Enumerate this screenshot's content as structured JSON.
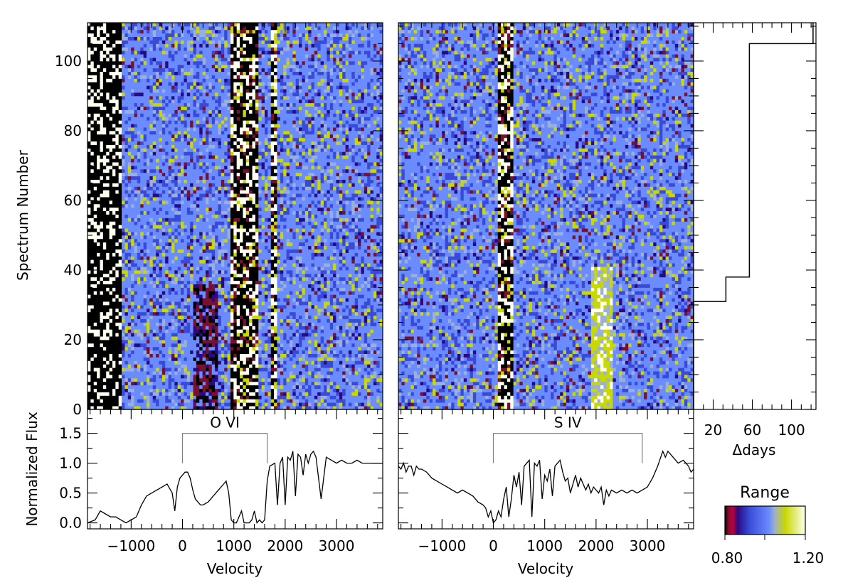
{
  "colors": {
    "colormap": [
      "#000000",
      "#7a1030",
      "#2a0a80",
      "#3a4ad8",
      "#6a8cff",
      "#9ab0d8",
      "#c8d800",
      "#fffff0"
    ],
    "axis": "#000000",
    "bracket": "#808080"
  },
  "left_panel": {
    "ylabel": "Spectrum Number",
    "yticks": [
      "0",
      "20",
      "40",
      "60",
      "80",
      "100"
    ]
  },
  "lower_left": {
    "ylabel": "Normalized Flux",
    "yticks": [
      "0.0",
      "0.5",
      "1.0",
      "1.5"
    ],
    "xticks": [
      "−1000",
      "0",
      "1000",
      "2000",
      "3000"
    ],
    "xlabel": "Velocity",
    "line_label": "O VI"
  },
  "lower_mid": {
    "xticks": [
      "−1000",
      "0",
      "1000",
      "2000",
      "3000"
    ],
    "xlabel": "Velocity",
    "line_label": "S IV"
  },
  "dt_panel": {
    "xticks": [
      "20",
      "60",
      "100"
    ],
    "xlabel": "Δdays"
  },
  "colorbar": {
    "title": "Range",
    "min_label": "0.80",
    "max_label": "1.20"
  },
  "chart_data": [
    {
      "type": "heatmap",
      "panel": "O VI dynamic spectrum",
      "x_range": [
        -1850,
        3900
      ],
      "y_range": [
        0,
        111
      ],
      "ylabel": "Spectrum Number",
      "value_range": [
        0.8,
        1.2
      ],
      "features": [
        {
          "velocity_range": [
            -1850,
            -1200
          ],
          "description": "black saturated bins, rows 0-110"
        },
        {
          "velocity_range": [
            200,
            700
          ],
          "description": "dark absorption feature, rows 0-35"
        },
        {
          "velocity_range": [
            950,
            1500
          ],
          "description": "black/white absorption band, all rows"
        },
        {
          "velocity_range": [
            1750,
            1850
          ],
          "description": "black/white absorption band, all rows"
        }
      ]
    },
    {
      "type": "heatmap",
      "panel": "S IV dynamic spectrum",
      "x_range": [
        -1850,
        3900
      ],
      "y_range": [
        0,
        111
      ],
      "value_range": [
        0.8,
        1.2
      ],
      "features": [
        {
          "velocity_range": [
            100,
            400
          ],
          "description": "dark/white absorption band, all rows"
        },
        {
          "velocity_range": [
            1900,
            2300
          ],
          "description": "yellow enhancement band, rows 0-40"
        }
      ]
    },
    {
      "type": "line",
      "panel": "O VI normalized flux",
      "xlabel": "Velocity",
      "ylabel": "Normalized Flux",
      "xlim": [
        -1850,
        3900
      ],
      "ylim": [
        -0.1,
        1.9
      ],
      "bracket": [
        0,
        1650
      ],
      "bracket_y": 1.5,
      "x": [
        -1850,
        -1700,
        -1600,
        -1500,
        -1400,
        -1300,
        -1200,
        -1100,
        -1000,
        -900,
        -800,
        -700,
        -600,
        -500,
        -400,
        -300,
        -200,
        -150,
        -100,
        -50,
        0,
        50,
        100,
        150,
        200,
        250,
        300,
        350,
        400,
        500,
        600,
        700,
        750,
        800,
        850,
        900,
        950,
        1000,
        1050,
        1100,
        1150,
        1200,
        1300,
        1350,
        1400,
        1450,
        1500,
        1550,
        1600,
        1650,
        1700,
        1800,
        1850,
        1900,
        1950,
        2000,
        2050,
        2100,
        2150,
        2200,
        2250,
        2300,
        2350,
        2400,
        2450,
        2500,
        2550,
        2600,
        2700,
        2800,
        2900,
        3000,
        3100,
        3200,
        3300,
        3400,
        3500,
        3600,
        3700,
        3800,
        3900
      ],
      "y": [
        0.0,
        0.05,
        0.2,
        0.15,
        0.1,
        0.1,
        0.05,
        0.0,
        0.05,
        0.1,
        0.3,
        0.45,
        0.5,
        0.55,
        0.6,
        0.65,
        0.5,
        0.2,
        0.6,
        0.75,
        0.8,
        0.85,
        0.85,
        0.75,
        0.55,
        0.4,
        0.35,
        0.3,
        0.3,
        0.35,
        0.45,
        0.55,
        0.6,
        0.65,
        0.7,
        0.5,
        0.05,
        0.0,
        0.0,
        0.1,
        0.2,
        0.0,
        0.0,
        0.05,
        0.2,
        0.0,
        0.05,
        0.0,
        0.05,
        0.7,
        0.95,
        1.0,
        0.3,
        1.0,
        1.1,
        0.3,
        1.1,
        1.05,
        1.2,
        0.45,
        1.15,
        1.1,
        0.8,
        1.15,
        1.0,
        1.15,
        1.2,
        1.1,
        0.4,
        1.1,
        1.05,
        1.0,
        1.05,
        1.0,
        1.0,
        1.05,
        1.0,
        1.0,
        1.0,
        1.0,
        1.0
      ]
    },
    {
      "type": "line",
      "panel": "S IV normalized flux",
      "xlabel": "Velocity",
      "xlim": [
        -1850,
        3900
      ],
      "ylim": [
        -0.1,
        1.9
      ],
      "bracket": [
        0,
        2900
      ],
      "bracket_y": 1.5,
      "x": [
        -1850,
        -1800,
        -1750,
        -1700,
        -1650,
        -1600,
        -1550,
        -1500,
        -1450,
        -1400,
        -1300,
        -1200,
        -1100,
        -1000,
        -900,
        -800,
        -700,
        -600,
        -500,
        -400,
        -300,
        -200,
        -150,
        -100,
        -50,
        0,
        50,
        100,
        150,
        200,
        250,
        300,
        350,
        400,
        450,
        500,
        550,
        600,
        650,
        700,
        750,
        800,
        850,
        900,
        950,
        1000,
        1050,
        1100,
        1150,
        1200,
        1250,
        1300,
        1350,
        1400,
        1450,
        1500,
        1550,
        1600,
        1650,
        1700,
        1750,
        1800,
        1850,
        1900,
        1950,
        2000,
        2050,
        2100,
        2150,
        2200,
        2250,
        2300,
        2400,
        2500,
        2600,
        2700,
        2800,
        2900,
        3000,
        3100,
        3200,
        3300,
        3350,
        3400,
        3500,
        3600,
        3700,
        3800,
        3850,
        3900
      ],
      "y": [
        0.95,
        0.9,
        1.0,
        0.85,
        0.95,
        0.95,
        0.8,
        0.95,
        0.9,
        0.9,
        0.85,
        0.75,
        0.7,
        0.65,
        0.6,
        0.55,
        0.5,
        0.55,
        0.5,
        0.45,
        0.35,
        0.3,
        0.25,
        0.1,
        0.2,
        0.0,
        0.05,
        0.2,
        0.1,
        0.4,
        0.6,
        0.1,
        0.4,
        0.8,
        0.6,
        0.85,
        0.3,
        0.95,
        1.0,
        1.05,
        0.1,
        1.0,
        0.95,
        1.05,
        0.4,
        0.8,
        0.7,
        0.9,
        0.45,
        0.95,
        1.0,
        1.05,
        0.85,
        0.7,
        0.75,
        0.5,
        0.65,
        0.8,
        0.6,
        0.75,
        0.65,
        0.55,
        0.65,
        0.5,
        0.6,
        0.55,
        0.5,
        0.6,
        0.3,
        0.55,
        0.45,
        0.55,
        0.5,
        0.55,
        0.5,
        0.55,
        0.5,
        0.55,
        0.6,
        0.75,
        0.95,
        1.2,
        1.1,
        1.2,
        1.1,
        1.0,
        1.05,
        0.95,
        0.85,
        0.9
      ]
    },
    {
      "type": "line",
      "panel": "time sampling",
      "xlabel": "Δdays",
      "xlim": [
        0,
        125
      ],
      "ylim": [
        0,
        111
      ],
      "steps": [
        {
          "day": 0,
          "spectra_to": 31
        },
        {
          "day": 33,
          "spectra_to": 38
        },
        {
          "day": 57,
          "spectra_to": 105
        },
        {
          "day": 122,
          "spectra_to": 111
        }
      ]
    }
  ]
}
